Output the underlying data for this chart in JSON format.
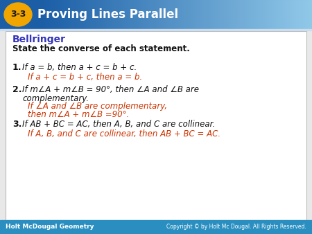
{
  "title_badge": "3-3",
  "title_text": "Proving Lines Parallel",
  "header_blue_dark": "#1b5ea6",
  "header_blue_light": "#90c8e8",
  "badge_gold": "#f0a500",
  "section_title": "Bellringer",
  "section_title_color": "#3333bb",
  "subtitle": "State the converse of each statement.",
  "black": "#111111",
  "red": "#cc3300",
  "footer_bg": "#2a8fc0",
  "footer_left": "Holt McDougal Geometry",
  "footer_right": "Copyright © by Holt Mc Dougal. All Rights Reserved.",
  "footer_text_color": "#ffffff",
  "body_bg": "#e8e8e8",
  "items": [
    {
      "number": "1.",
      "statement": "If a = b, then a + c = b + c.",
      "converse": "If a + c = b + c, then a = b."
    },
    {
      "number": "2.",
      "statement_line1": "If m∠A + m∠B = 90°, then ∠A and ∠B are",
      "statement_line2": "complementary.",
      "converse_line1": "If ∠A and ∠B are complementary,",
      "converse_line2": "then m∠A + m∠B =90°."
    },
    {
      "number": "3.",
      "statement": "If AB + BC = AC, then A, B, and C are collinear.",
      "converse": "If A, B, and C are collinear, then AB + BC = AC."
    }
  ]
}
